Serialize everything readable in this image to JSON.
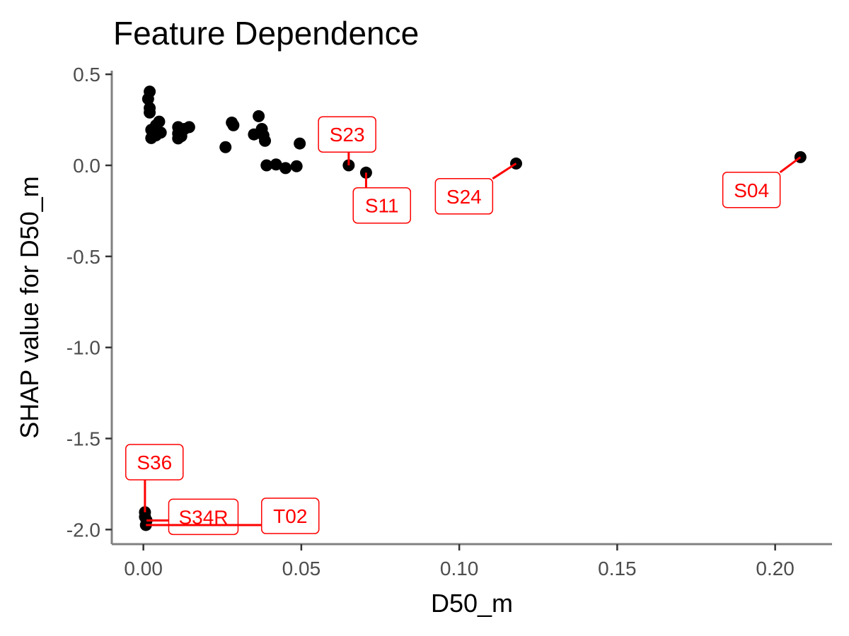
{
  "chart_data": {
    "type": "scatter",
    "title": "Feature Dependence",
    "xlabel": "D50_m",
    "ylabel": "SHAP value for D50_m",
    "xlim": [
      -0.01,
      0.218
    ],
    "ylim": [
      -2.08,
      0.52
    ],
    "x_ticks": [
      0.0,
      0.05,
      0.1,
      0.15,
      0.2
    ],
    "x_tick_labels": [
      "0.00",
      "0.05",
      "0.10",
      "0.15",
      "0.20"
    ],
    "y_ticks": [
      0.5,
      0.0,
      -0.5,
      -1.0,
      -1.5,
      -2.0
    ],
    "y_tick_labels": [
      "0.5",
      "0.0",
      "-0.5",
      "-1.0",
      "-1.5",
      "-2.0"
    ],
    "grid": false,
    "point_color": "#000000",
    "label_color": "#ff0000",
    "points": [
      {
        "x": 0.0015,
        "y": 0.365
      },
      {
        "x": 0.002,
        "y": 0.405
      },
      {
        "x": 0.002,
        "y": 0.315
      },
      {
        "x": 0.002,
        "y": 0.29
      },
      {
        "x": 0.0025,
        "y": 0.195
      },
      {
        "x": 0.0025,
        "y": 0.15
      },
      {
        "x": 0.004,
        "y": 0.22
      },
      {
        "x": 0.004,
        "y": 0.165
      },
      {
        "x": 0.005,
        "y": 0.24
      },
      {
        "x": 0.0055,
        "y": 0.18
      },
      {
        "x": 0.011,
        "y": 0.21
      },
      {
        "x": 0.011,
        "y": 0.175
      },
      {
        "x": 0.011,
        "y": 0.148
      },
      {
        "x": 0.012,
        "y": 0.16
      },
      {
        "x": 0.013,
        "y": 0.2
      },
      {
        "x": 0.0145,
        "y": 0.21
      },
      {
        "x": 0.026,
        "y": 0.1
      },
      {
        "x": 0.028,
        "y": 0.235
      },
      {
        "x": 0.0285,
        "y": 0.22
      },
      {
        "x": 0.035,
        "y": 0.17
      },
      {
        "x": 0.0365,
        "y": 0.27
      },
      {
        "x": 0.0375,
        "y": 0.2
      },
      {
        "x": 0.038,
        "y": 0.165
      },
      {
        "x": 0.0385,
        "y": 0.135
      },
      {
        "x": 0.039,
        "y": 0.0
      },
      {
        "x": 0.042,
        "y": 0.005
      },
      {
        "x": 0.045,
        "y": -0.015
      },
      {
        "x": 0.0485,
        "y": -0.005
      },
      {
        "x": 0.0495,
        "y": 0.12
      },
      {
        "x": 0.065,
        "y": 0.0,
        "label": "S23"
      },
      {
        "x": 0.0705,
        "y": -0.04,
        "label": "S11"
      },
      {
        "x": 0.118,
        "y": 0.01,
        "label": "S24"
      },
      {
        "x": 0.208,
        "y": 0.045,
        "label": "S04"
      },
      {
        "x": 0.0005,
        "y": -1.905,
        "label": "S36"
      },
      {
        "x": 0.0005,
        "y": -1.93
      },
      {
        "x": 0.001,
        "y": -1.95,
        "label": "S34R"
      },
      {
        "x": 0.0008,
        "y": -1.975,
        "label": "T02"
      }
    ],
    "labels": [
      {
        "text": "S23",
        "x": 0.065,
        "y": 0.0,
        "lx": 0.0645,
        "ly": 0.17
      },
      {
        "text": "S11",
        "x": 0.0705,
        "y": -0.04,
        "lx": 0.0755,
        "ly": -0.22
      },
      {
        "text": "S24",
        "x": 0.118,
        "y": 0.01,
        "lx": 0.1015,
        "ly": -0.17
      },
      {
        "text": "S04",
        "x": 0.208,
        "y": 0.045,
        "lx": 0.1925,
        "ly": -0.135
      },
      {
        "text": "S36",
        "x": 0.0005,
        "y": -1.905,
        "lx": 0.0035,
        "ly": -1.63
      },
      {
        "text": "S34R",
        "x": 0.001,
        "y": -1.95,
        "lx": 0.019,
        "ly": -1.93
      },
      {
        "text": "T02",
        "x": 0.0008,
        "y": -1.975,
        "lx": 0.0465,
        "ly": -1.925
      }
    ]
  }
}
